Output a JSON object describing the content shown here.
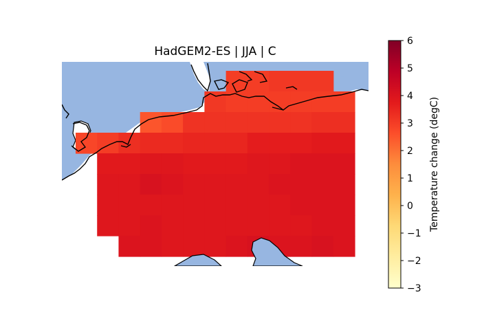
{
  "title": "HadGEM2-ES | JJA | C",
  "colors": {
    "sea": "#97b6e1",
    "coast": "#000000",
    "background": "#ffffff"
  },
  "colormap": {
    "name": "YlOrRd",
    "stops": [
      "#ffffcc",
      "#ffeda0",
      "#fed976",
      "#feb24c",
      "#fd8d3c",
      "#fc4e2a",
      "#e31a1c",
      "#bd0026",
      "#800026"
    ]
  },
  "colorbar": {
    "label": "Temperature change (degC)",
    "min": -3,
    "max": 6,
    "ticks": [
      {
        "value": 6,
        "label": "6"
      },
      {
        "value": 5,
        "label": "5"
      },
      {
        "value": 4,
        "label": "4"
      },
      {
        "value": 3,
        "label": "3"
      },
      {
        "value": 2,
        "label": "2"
      },
      {
        "value": 1,
        "label": "1"
      },
      {
        "value": 0,
        "label": "0"
      },
      {
        "value": -1,
        "label": "−1"
      },
      {
        "value": -2,
        "label": "−2"
      },
      {
        "value": -3,
        "label": "−3"
      }
    ]
  },
  "grid": {
    "columns": 13,
    "rows": 9,
    "values": [
      [
        null,
        null,
        null,
        null,
        null,
        null,
        null,
        3.0,
        3.0,
        3.1,
        3.1,
        3.1,
        null
      ],
      [
        null,
        null,
        null,
        null,
        null,
        null,
        3.1,
        3.0,
        3.0,
        3.0,
        3.0,
        3.0,
        3.0
      ],
      [
        null,
        null,
        null,
        2.5,
        2.7,
        3.2,
        3.2,
        3.2,
        3.2,
        3.2,
        3.2,
        3.3,
        3.3
      ],
      [
        2.8,
        3.0,
        3.3,
        3.4,
        3.4,
        3.5,
        3.5,
        3.5,
        3.7,
        3.7,
        3.7,
        3.8,
        3.8
      ],
      [
        null,
        3.8,
        3.8,
        3.9,
        3.9,
        3.8,
        3.8,
        3.8,
        3.9,
        3.9,
        4.0,
        4.0,
        4.0
      ],
      [
        null,
        3.9,
        3.9,
        4.1,
        4.0,
        3.9,
        3.9,
        3.9,
        3.9,
        4.0,
        4.0,
        4.0,
        4.0
      ],
      [
        null,
        3.9,
        3.9,
        3.9,
        3.9,
        3.9,
        3.9,
        3.9,
        3.9,
        3.9,
        4.0,
        4.0,
        4.0
      ],
      [
        null,
        3.9,
        3.9,
        4.0,
        3.9,
        3.9,
        3.9,
        3.9,
        3.9,
        3.9,
        3.9,
        4.0,
        4.0
      ],
      [
        null,
        null,
        4.0,
        4.0,
        3.9,
        3.9,
        3.9,
        4.0,
        4.1,
        4.0,
        4.0,
        4.1,
        4.0
      ]
    ]
  }
}
